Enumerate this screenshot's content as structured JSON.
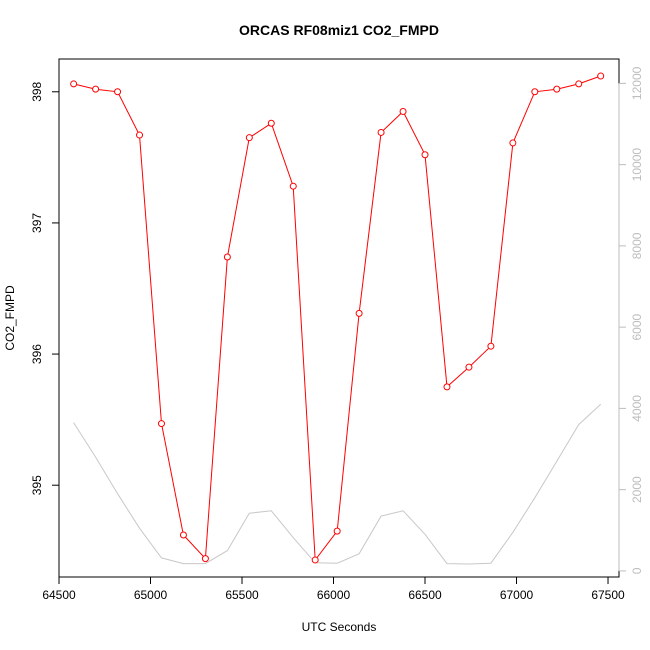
{
  "chart_data": {
    "type": "line",
    "title": "ORCAS RF08miz1 CO2_FMPD",
    "xlabel": "UTC Seconds",
    "ylabel": "CO2_FMPD",
    "xlim": [
      64500,
      67560
    ],
    "ylim": [
      394.3,
      398.25
    ],
    "y2lim": [
      -150,
      12600
    ],
    "x_ticks": [
      64500,
      65000,
      65500,
      66000,
      66500,
      67000,
      67500
    ],
    "y_ticks": [
      395,
      396,
      397,
      398
    ],
    "y2_ticks": [
      0,
      2000,
      4000,
      6000,
      8000,
      10000,
      12000
    ],
    "grid": false,
    "series": [
      {
        "color": "#ff0000",
        "marker": "circle-open",
        "axis": "left",
        "x": [
          64580,
          64700,
          64820,
          64940,
          65060,
          65180,
          65300,
          65420,
          65540,
          65660,
          65780,
          65900,
          66020,
          66140,
          66260,
          66380,
          66500,
          66620,
          66740,
          66860,
          66980,
          67100,
          67220,
          67340,
          67460
        ],
        "values": [
          398.06,
          398.02,
          398.0,
          397.67,
          395.47,
          394.62,
          394.44,
          396.74,
          397.65,
          397.76,
          397.28,
          394.43,
          394.65,
          396.31,
          397.69,
          397.85,
          397.52,
          395.75,
          395.9,
          396.06,
          397.61,
          398.0,
          398.02,
          398.06,
          398.12
        ]
      },
      {
        "color": "#c8c8c8",
        "marker": "none",
        "axis": "right",
        "x": [
          64580,
          64700,
          64820,
          64940,
          65060,
          65180,
          65300,
          65420,
          65540,
          65660,
          65780,
          65900,
          66020,
          66140,
          66260,
          66380,
          66500,
          66620,
          66740,
          66860,
          66980,
          67100,
          67220,
          67340,
          67460
        ],
        "values": [
          3650,
          2800,
          1900,
          1050,
          320,
          180,
          180,
          500,
          1420,
          1480,
          820,
          200,
          190,
          420,
          1350,
          1480,
          900,
          180,
          170,
          190,
          950,
          1800,
          2700,
          3600,
          4100
        ]
      }
    ]
  }
}
